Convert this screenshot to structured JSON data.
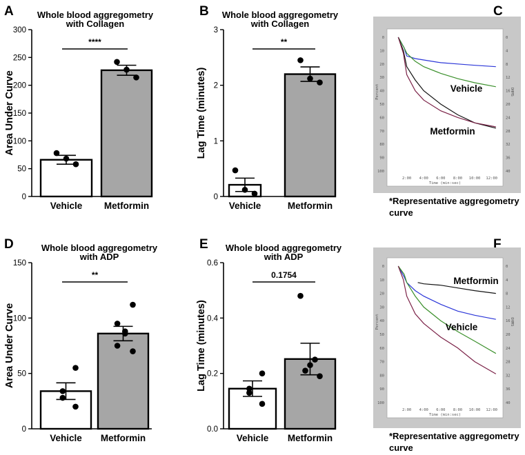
{
  "colors": {
    "vehicle_fill": "#ffffff",
    "metformin_fill": "#a6a6a6",
    "trace_blue": "#2a35d8",
    "trace_green": "#3a8f2a",
    "trace_black": "#111111",
    "trace_maroon": "#7a2046",
    "trace_frame": "#c8c8c8"
  },
  "chart_data": [
    {
      "panel": "A",
      "type": "bar",
      "title": [
        "Whole blood aggregometry",
        "with Collagen"
      ],
      "ylabel": "Area Under Curve",
      "xlabel": "",
      "categories": [
        "Vehicle",
        "Metformin"
      ],
      "means": [
        66,
        227
      ],
      "sem": [
        8,
        9
      ],
      "points": [
        [
          58,
          68,
          78
        ],
        [
          214,
          228,
          242
        ]
      ],
      "ylim": [
        0,
        300
      ],
      "yticks": [
        0,
        50,
        100,
        150,
        200,
        250,
        300
      ],
      "significance": "****"
    },
    {
      "panel": "B",
      "type": "bar",
      "title": [
        "Whole blood aggregometry",
        "with Collagen"
      ],
      "ylabel": "Lag Time (minutes)",
      "xlabel": "",
      "categories": [
        "Vehicle",
        "Metformin"
      ],
      "means": [
        0.21,
        2.2
      ],
      "sem": [
        0.12,
        0.13
      ],
      "points": [
        [
          0.05,
          0.12,
          0.47
        ],
        [
          2.05,
          2.12,
          2.45
        ]
      ],
      "ylim": [
        0,
        3
      ],
      "yticks": [
        0,
        1,
        2,
        3
      ],
      "significance": "**"
    },
    {
      "panel": "D",
      "type": "bar",
      "title": [
        "Whole blood aggregometry",
        "with ADP"
      ],
      "ylabel": "Area Under Curve",
      "xlabel": "",
      "categories": [
        "Vehicle",
        "Metformin"
      ],
      "means": [
        34,
        86
      ],
      "sem": [
        7.5,
        6.5
      ],
      "points": [
        [
          20,
          28,
          34,
          55
        ],
        [
          70,
          75,
          86,
          88,
          95,
          112
        ]
      ],
      "ylim": [
        0,
        150
      ],
      "yticks": [
        0,
        50,
        100,
        150
      ],
      "significance": "**"
    },
    {
      "panel": "E",
      "type": "bar",
      "title": [
        "Whole blood aggregometry",
        "with ADP"
      ],
      "ylabel": "Lag Time (minutes)",
      "xlabel": "",
      "categories": [
        "Vehicle",
        "Metformin"
      ],
      "means": [
        0.145,
        0.252
      ],
      "sem": [
        0.028,
        0.057
      ],
      "points": [
        [
          0.09,
          0.13,
          0.145,
          0.2
        ],
        [
          0.19,
          0.21,
          0.23,
          0.25,
          0.48
        ]
      ],
      "ylim": [
        0,
        0.6
      ],
      "yticks": [
        "0.0",
        "0.2",
        "0.4",
        "0.6"
      ],
      "significance": "0.1754"
    },
    {
      "panel": "C",
      "type": "line",
      "title": "",
      "labels": [
        "Vehicle",
        "Metformin"
      ],
      "left_axis_label": "Percent",
      "right_axis_label": "OHMS",
      "left_ticks": [
        "0",
        "10",
        "20",
        "30",
        "40",
        "50",
        "60",
        "70",
        "80",
        "90",
        "100"
      ],
      "right_ticks": [
        "0",
        "4",
        "8",
        "12",
        "16",
        "20",
        "24",
        "28",
        "32",
        "36",
        "40"
      ],
      "x_ticks": [
        "2:00",
        "4:00",
        "6:00",
        "8:00",
        "10:00",
        "12:00"
      ],
      "x_label": "Time (min:sec)",
      "caption": [
        "*Representative aggregometry",
        "curve"
      ],
      "series": [
        {
          "name": "blue",
          "x": [
            1,
            1.7,
            2,
            3,
            4,
            6,
            8,
            10,
            12.5
          ],
          "y": [
            0,
            8,
            14,
            16,
            17,
            19,
            20,
            21,
            22
          ]
        },
        {
          "name": "green",
          "x": [
            1,
            1.7,
            2,
            3,
            4,
            6,
            8,
            10,
            12.5
          ],
          "y": [
            0,
            8,
            12,
            18,
            22,
            27,
            31,
            34,
            37
          ]
        },
        {
          "name": "black",
          "x": [
            1,
            1.6,
            2,
            3,
            4,
            6,
            8,
            10,
            12.5
          ],
          "y": [
            0,
            10,
            22,
            32,
            40,
            50,
            58,
            64,
            68
          ]
        },
        {
          "name": "maroon",
          "x": [
            1,
            1.6,
            2,
            3,
            4,
            6,
            8,
            10,
            12.5
          ],
          "y": [
            0,
            12,
            28,
            40,
            47,
            55,
            60,
            64,
            67
          ]
        }
      ]
    },
    {
      "panel": "F",
      "type": "line",
      "title": "",
      "labels": [
        "Metformin",
        "Vehicle"
      ],
      "left_axis_label": "Percent",
      "right_axis_label": "OHMS",
      "left_ticks": [
        "0",
        "10",
        "20",
        "30",
        "40",
        "50",
        "60",
        "70",
        "80",
        "90",
        "100"
      ],
      "right_ticks": [
        "0",
        "4",
        "8",
        "12",
        "16",
        "20",
        "24",
        "28",
        "32",
        "36",
        "40"
      ],
      "x_ticks": [
        "2:00",
        "4:00",
        "6:00",
        "8:00",
        "10:00",
        "12:00"
      ],
      "x_label": "Time (min:sec)",
      "caption": [
        "*Representative aggregometry",
        "curve"
      ],
      "series": [
        {
          "name": "black",
          "x": [
            3.3,
            4,
            6,
            8,
            10,
            12.5
          ],
          "y": [
            12,
            13,
            14,
            16,
            18,
            20
          ]
        },
        {
          "name": "blue",
          "x": [
            1,
            1.7,
            2,
            3,
            4,
            6,
            8,
            10,
            12.5
          ],
          "y": [
            0,
            8,
            12,
            18,
            22,
            28,
            33,
            36,
            39
          ]
        },
        {
          "name": "green",
          "x": [
            1,
            1.7,
            2,
            3,
            4,
            6,
            8,
            10,
            12.5
          ],
          "y": [
            0,
            6,
            12,
            22,
            30,
            40,
            48,
            55,
            64
          ]
        },
        {
          "name": "maroon",
          "x": [
            1,
            1.6,
            2,
            3,
            4,
            6,
            8,
            10,
            12.5
          ],
          "y": [
            0,
            10,
            22,
            35,
            42,
            52,
            60,
            70,
            79
          ]
        }
      ]
    }
  ]
}
